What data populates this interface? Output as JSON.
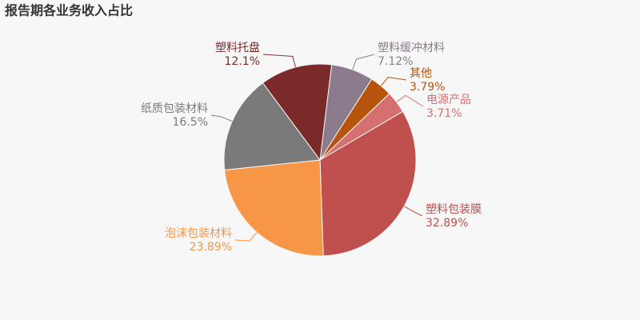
{
  "chart_data": {
    "type": "pie",
    "title": "报告期各业务收入占比",
    "categories": [
      "塑料缓冲材料",
      "其他",
      "电源产品",
      "塑料包装膜",
      "泡沫包装材料",
      "纸质包装材料",
      "塑料托盘"
    ],
    "values": [
      7.12,
      3.79,
      3.71,
      32.89,
      23.89,
      16.5,
      12.1
    ],
    "value_labels": [
      "7.12%",
      "3.79%",
      "3.71%",
      "32.89%",
      "23.89%",
      "16.5%",
      "12.1%"
    ],
    "colors": [
      "#8c7b8c",
      "#b5540a",
      "#d47070",
      "#c0504d",
      "#f79646",
      "#7a7a7a",
      "#7b2a2a"
    ]
  }
}
